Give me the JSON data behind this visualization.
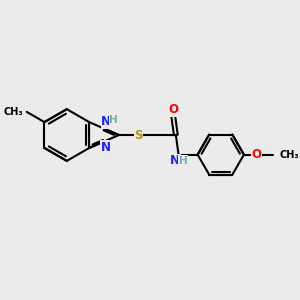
{
  "bg_color": "#ebebeb",
  "bond_color": "#000000",
  "bond_width": 1.5,
  "font_size": 8.5,
  "atom_colors": {
    "N": "#2020ff",
    "S": "#b8960a",
    "O": "#ff0000",
    "H": "#6ab5b5",
    "C": "#000000"
  },
  "figsize": [
    3.0,
    3.0
  ],
  "dpi": 100,
  "xlim": [
    0,
    10
  ],
  "ylim": [
    0,
    10
  ]
}
